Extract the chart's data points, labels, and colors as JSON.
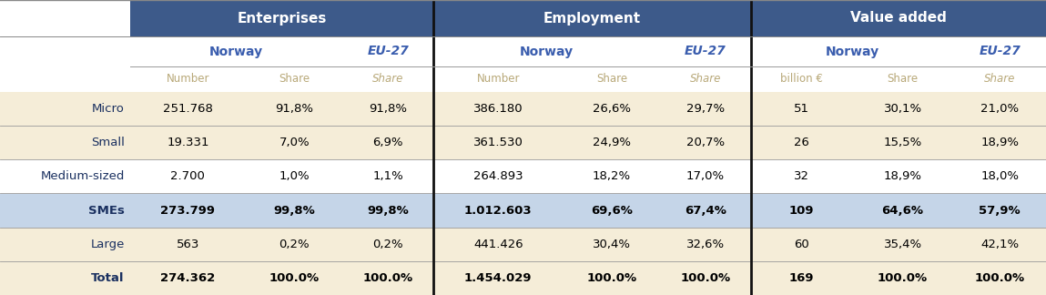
{
  "header1_label": "Enterprises",
  "header2_label": "Employment",
  "header3_label": "Value added",
  "col_labels": [
    "Number",
    "Share",
    "Share",
    "Number",
    "Share",
    "Share",
    "billion €",
    "Share",
    "Share"
  ],
  "row_labels": [
    "Micro",
    "Small",
    "Medium-sized",
    "SMEs",
    "Large",
    "Total"
  ],
  "row_bold": [
    false,
    false,
    false,
    true,
    false,
    true
  ],
  "data": [
    [
      "251.768",
      "91,8%",
      "91,8%",
      "386.180",
      "26,6%",
      "29,7%",
      "51",
      "30,1%",
      "21,0%"
    ],
    [
      "19.331",
      "7,0%",
      "6,9%",
      "361.530",
      "24,9%",
      "20,7%",
      "26",
      "15,5%",
      "18,9%"
    ],
    [
      "2.700",
      "1,0%",
      "1,1%",
      "264.893",
      "18,2%",
      "17,0%",
      "32",
      "18,9%",
      "18,0%"
    ],
    [
      "273.799",
      "99,8%",
      "99,8%",
      "1.012.603",
      "69,6%",
      "67,4%",
      "109",
      "64,6%",
      "57,9%"
    ],
    [
      "563",
      "0,2%",
      "0,2%",
      "441.426",
      "30,4%",
      "32,6%",
      "60",
      "35,4%",
      "42,1%"
    ],
    [
      "274.362",
      "100.0%",
      "100.0%",
      "1.454.029",
      "100.0%",
      "100.0%",
      "169",
      "100.0%",
      "100.0%"
    ]
  ],
  "header_bg": "#3D5A8A",
  "header_text": "#FFFFFF",
  "subheader_norway_color": "#3A5DAE",
  "subheader_eu27_color": "#3A5DAE",
  "col_label_color": "#B8A878",
  "row_label_color": "#1A3060",
  "smes_row_bg": "#C5D5E8",
  "beige_row_bg": "#F5EDD8",
  "white_row_bg": "#FFFFFF",
  "divider_color": "#1A1A1A",
  "header_divider_color": "#3D5A8A",
  "row_bgs": [
    "#F5EDD8",
    "#F5EDD8",
    "#FFFFFF",
    "#C5D5E8",
    "#F5EDD8",
    "#F5EDD8"
  ]
}
